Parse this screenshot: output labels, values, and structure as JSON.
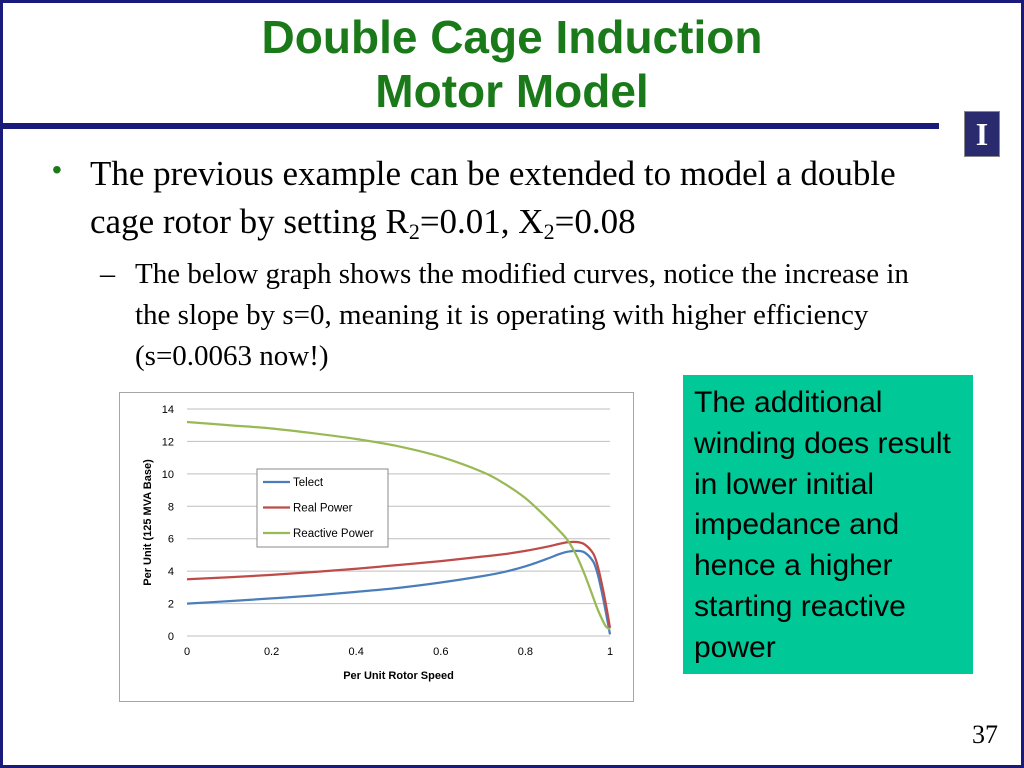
{
  "slide": {
    "title_line1": "Double Cage Induction",
    "title_line2": "Motor Model",
    "logo_letter": "I",
    "bullet_marker": "•",
    "bullet": {
      "part1": "The previous example can be extended to model a double cage rotor by setting R",
      "sub1": "2",
      "part2": "=0.01, X",
      "sub2": "2",
      "part3": "=0.08"
    },
    "sub_bullet_marker": "–",
    "sub_bullet": "The below graph shows the modified curves, notice the increase in the slope by s=0, meaning it is operating with higher efficiency (s=0.0063 now!)",
    "note": "The additional winding does result in lower initial impedance and hence a higher starting reactive power",
    "page_number": "37"
  },
  "colors": {
    "title": "#1a7a1a",
    "rule": "#1a1a7a",
    "note_bg": "#00c896",
    "telect": "#4a7ebb",
    "real_power": "#be4b48",
    "reactive_power": "#98b954"
  },
  "chart_data": {
    "type": "line",
    "xlabel": "Per Unit Rotor Speed",
    "ylabel": "Per Unit (125 MVA Base)",
    "xlim": [
      0,
      1
    ],
    "ylim": [
      0,
      14
    ],
    "xticks": [
      "0",
      "0.2",
      "0.4",
      "0.6",
      "0.8",
      "1"
    ],
    "yticks": [
      "0",
      "2",
      "4",
      "6",
      "8",
      "10",
      "12",
      "14"
    ],
    "grid": true,
    "legend_position": "left-middle",
    "series": [
      {
        "name": "Telect",
        "color": "#4a7ebb",
        "x": [
          0,
          0.1,
          0.2,
          0.3,
          0.4,
          0.5,
          0.6,
          0.7,
          0.75,
          0.8,
          0.85,
          0.88,
          0.9,
          0.92,
          0.94,
          0.96,
          0.97,
          0.98,
          0.99,
          1.0
        ],
        "y": [
          2.0,
          2.15,
          2.32,
          2.5,
          2.72,
          2.97,
          3.3,
          3.7,
          3.95,
          4.3,
          4.75,
          5.05,
          5.2,
          5.25,
          5.15,
          4.6,
          3.9,
          2.8,
          1.5,
          0.1
        ]
      },
      {
        "name": "Real Power",
        "color": "#be4b48",
        "x": [
          0,
          0.1,
          0.2,
          0.3,
          0.4,
          0.5,
          0.6,
          0.7,
          0.75,
          0.8,
          0.85,
          0.88,
          0.9,
          0.92,
          0.94,
          0.96,
          0.97,
          0.98,
          0.99,
          1.0
        ],
        "y": [
          3.5,
          3.62,
          3.77,
          3.95,
          4.15,
          4.38,
          4.62,
          4.9,
          5.05,
          5.25,
          5.5,
          5.68,
          5.78,
          5.8,
          5.65,
          5.1,
          4.4,
          3.3,
          2.0,
          0.5
        ]
      },
      {
        "name": "Reactive Power",
        "color": "#98b954",
        "x": [
          0,
          0.1,
          0.2,
          0.3,
          0.4,
          0.5,
          0.6,
          0.7,
          0.75,
          0.8,
          0.85,
          0.88,
          0.9,
          0.92,
          0.94,
          0.96,
          0.97,
          0.98,
          0.99,
          1.0
        ],
        "y": [
          13.2,
          13.0,
          12.8,
          12.5,
          12.15,
          11.7,
          11.05,
          10.1,
          9.4,
          8.5,
          7.3,
          6.5,
          5.9,
          5.0,
          3.8,
          2.4,
          1.7,
          1.1,
          0.6,
          0.4
        ]
      }
    ]
  }
}
